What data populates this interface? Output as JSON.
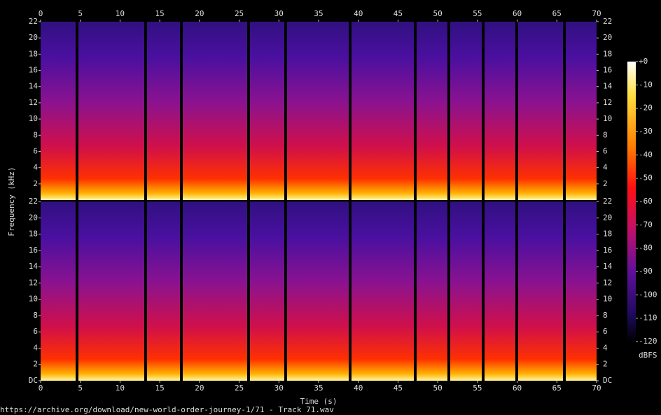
{
  "chart_data": {
    "type": "spectrogram",
    "xlabel": "Time (s)",
    "ylabel": "Frequency (kHz)",
    "xlim": [
      0,
      70
    ],
    "xticks": [
      0,
      5,
      10,
      15,
      20,
      25,
      30,
      35,
      40,
      45,
      50,
      55,
      60,
      65,
      70
    ],
    "panels": [
      {
        "ylim": [
          0,
          22
        ],
        "yticks": [
          2,
          4,
          6,
          8,
          10,
          12,
          14,
          16,
          18,
          20,
          22
        ]
      },
      {
        "ylim": [
          0,
          22
        ],
        "yticks": [
          {
            "value": 0,
            "label": "DC"
          },
          2,
          4,
          6,
          8,
          10,
          12,
          14,
          16,
          18,
          20,
          22
        ]
      }
    ],
    "colorbar": {
      "label": "dBFS",
      "lim": [
        -120,
        0
      ],
      "ticks": [
        {
          "value": 0,
          "label": "+0"
        },
        -10,
        -20,
        -30,
        -40,
        -50,
        -60,
        -70,
        -80,
        -90,
        -100,
        -110,
        -120
      ]
    },
    "footer": "https://archive.org/download/new-world-order-journey-1/71 - Track 71.wav"
  }
}
